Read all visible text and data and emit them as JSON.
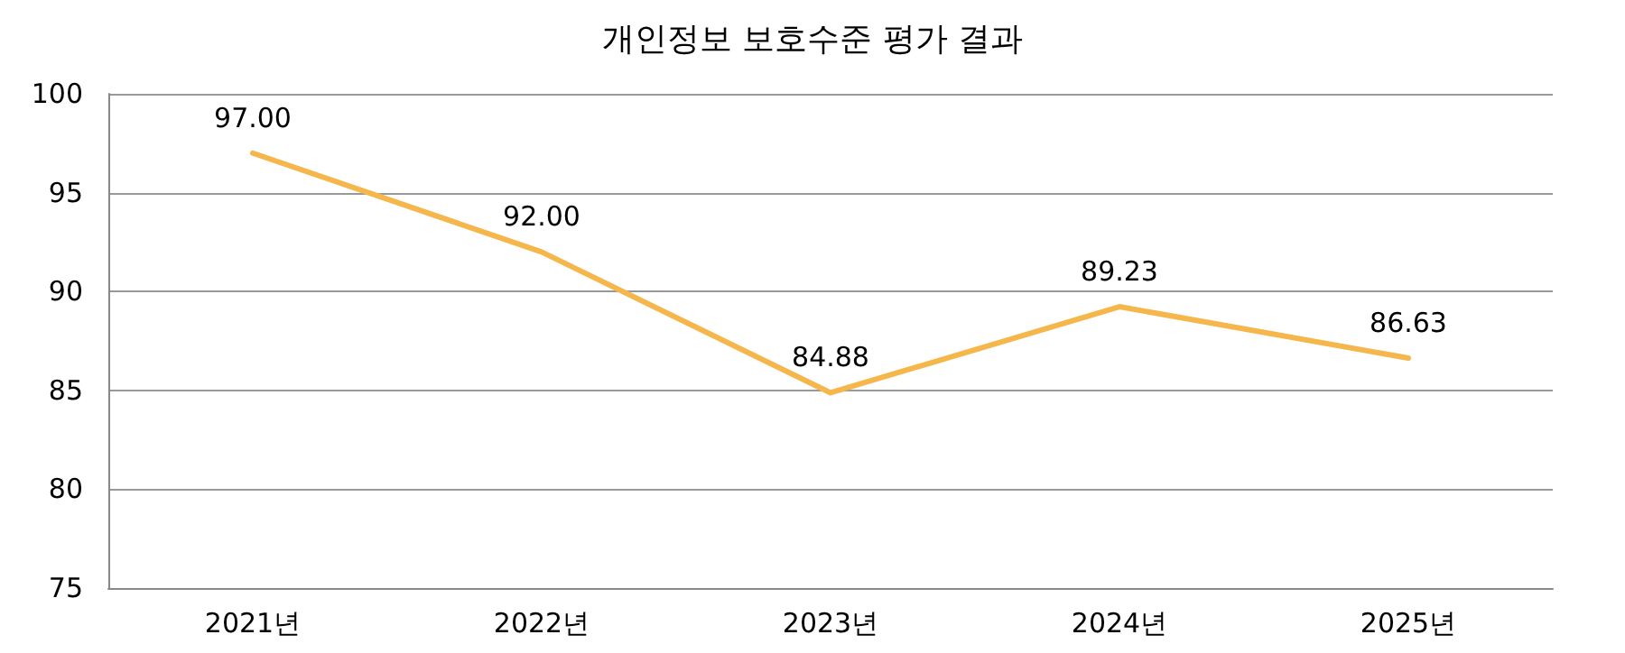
{
  "chart_data": {
    "type": "line",
    "title": "개인정보 보호수준 평가 결과",
    "categories": [
      "2021년",
      "2022년",
      "2023년",
      "2024년",
      "2025년"
    ],
    "series": [
      {
        "color": "#f5b64c",
        "values": [
          97,
          92,
          84.88,
          89.23,
          86.63
        ],
        "value_labels": [
          "97.00",
          "92.00",
          "84.88",
          "89.23",
          "86.63"
        ]
      }
    ],
    "ylim": [
      75,
      100
    ],
    "yticks": [
      75,
      80,
      85,
      90,
      95,
      100
    ],
    "grid": "y",
    "marker": "none",
    "line_style": "solid"
  }
}
